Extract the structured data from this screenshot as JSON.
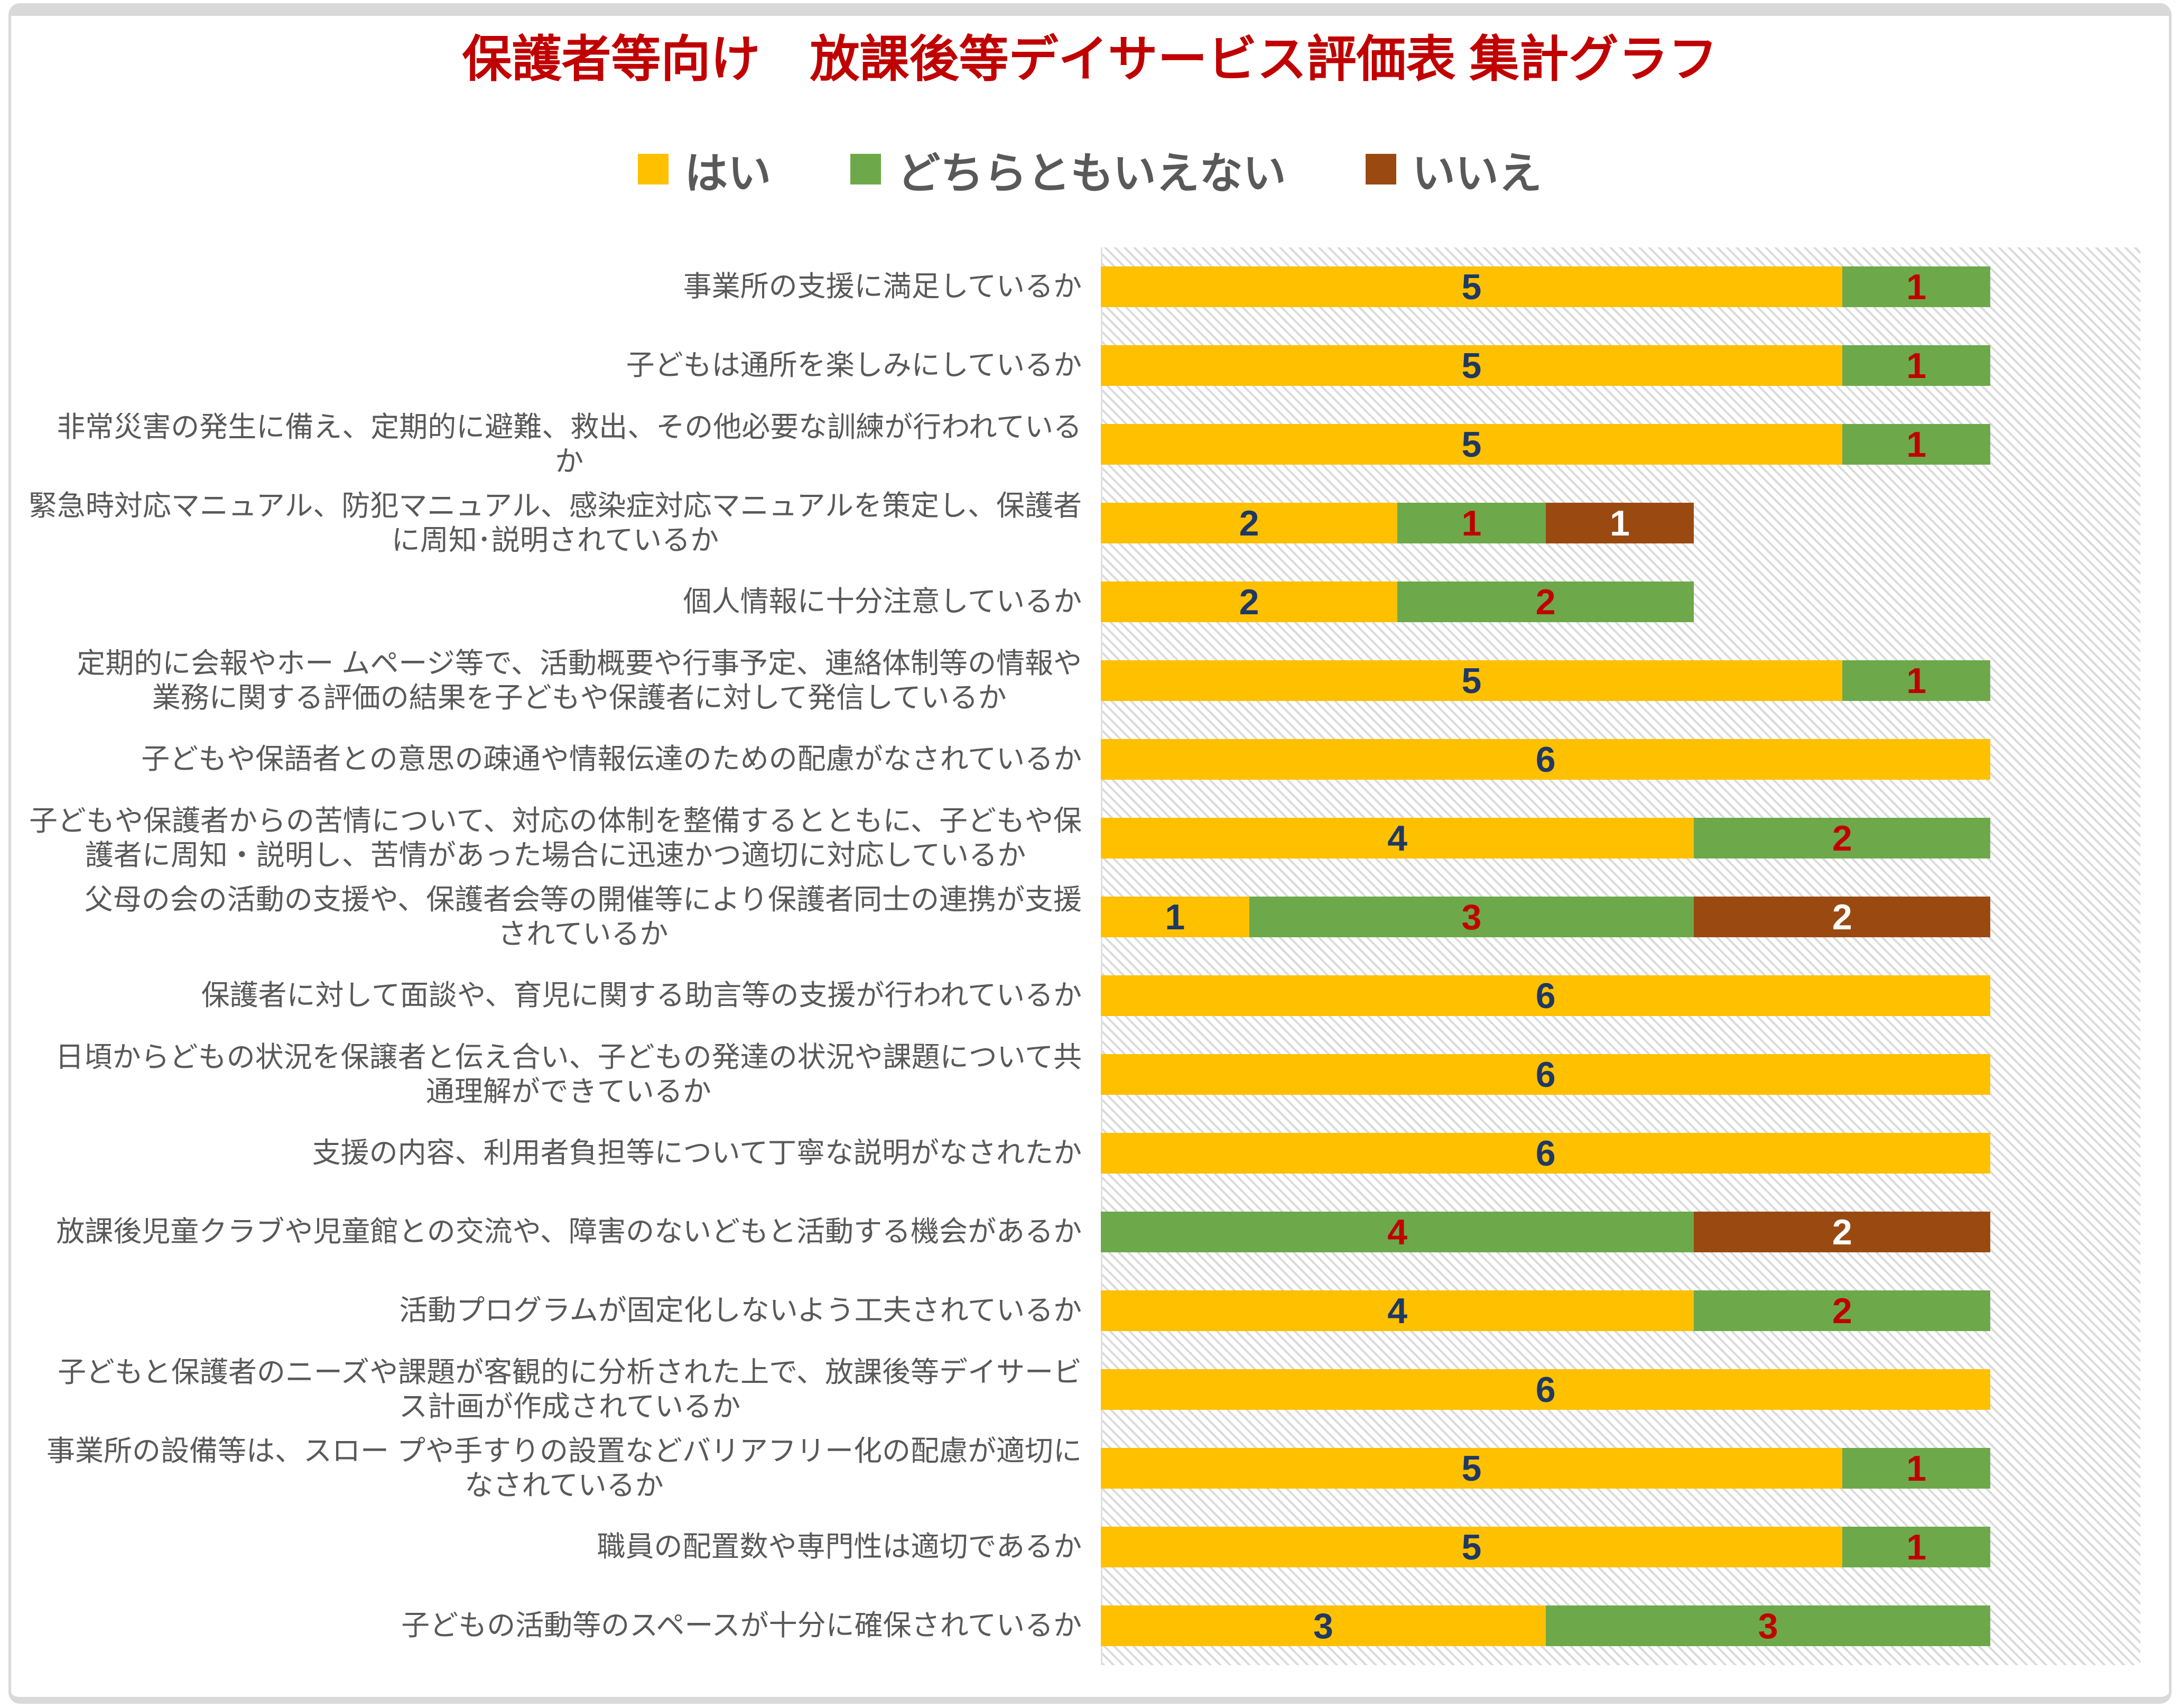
{
  "title": "保護者等向け　放課後等デイサービス評価表 集計グラフ",
  "legend": [
    {
      "key": "yes",
      "label": "はい",
      "color": "#FFC000"
    },
    {
      "key": "neutral",
      "label": "どちらともいえない",
      "color": "#6DA94A"
    },
    {
      "key": "no",
      "label": "いいえ",
      "color": "#9A4A11"
    }
  ],
  "colors": {
    "title": "#C00000",
    "value_on_yes": "#1F3864",
    "value_on_neutral": "#C00000",
    "value_on_no": "#FFFFFF",
    "category_text": "#595959",
    "hatch_line": "#DBDBDB",
    "frame_border": "#D9D9D9"
  },
  "chart_data": {
    "type": "bar",
    "orientation": "horizontal",
    "stacked": true,
    "x_min": 0,
    "x_max": 7,
    "grid": false,
    "legend_position": "top",
    "plot_background": "light diagonal hatch",
    "categories": [
      "事業所の支援に満足しているか",
      "子どもは通所を楽しみにしているか",
      "非常災害の発生に備え、定期的に避難、救出、その他必要な訓練が行われている\nか",
      "緊急時対応マニュアル、防犯マニュアル、感染症対応マニュアルを策定し、保護者\nに周知･説明されているか",
      "個人情報に十分注意しているか",
      "定期的に会報やホー ムページ等で、活動概要や行事予定、連絡体制等の情報や\n業務に関する評価の結果を子どもや保護者に対して発信しているか",
      "子どもや保語者との意思の疎通や情報伝達のための配慮がなされているか",
      "子どもや保護者からの苦情について、対応の体制を整備するとともに、子どもや保\n護者に周知・説明し、苦情があった場合に迅速かつ適切に対応しているか",
      "父母の会の活動の支援や、保護者会等の開催等により保護者同士の連携が支援\nされているか",
      "保護者に対して面談や、育児に関する助言等の支援が行われているか",
      "日頃からどもの状況を保譲者と伝え合い、子どもの発達の状況や課題について共\n通理解ができているか",
      "支援の内容、利用者負担等について丁寧な説明がなされたか",
      "放課後児童クラブや児童館との交流や、障害のないどもと活動する機会があるか",
      "活動プログラムが固定化しないよう工夫されているか",
      "子どもと保護者のニーズや課題が客観的に分析された上で、放課後等デイサービ\nス計画が作成されているか",
      "事業所の設備等は、スロー プや手すりの設置などバリアフリー化の配慮が適切に\nなされているか",
      "職員の配置数や専門性は適切であるか",
      "子どもの活動等のスペースが十分に確保されているか"
    ],
    "series": [
      {
        "key": "yes",
        "name": "はい",
        "color": "#FFC000",
        "label_color": "#1F3864",
        "values": [
          5,
          5,
          5,
          2,
          2,
          5,
          6,
          4,
          1,
          6,
          6,
          6,
          0,
          4,
          6,
          5,
          5,
          3
        ]
      },
      {
        "key": "neutral",
        "name": "どちらともいえない",
        "color": "#6DA94A",
        "label_color": "#C00000",
        "values": [
          1,
          1,
          1,
          1,
          2,
          1,
          0,
          2,
          3,
          0,
          0,
          0,
          4,
          2,
          0,
          1,
          1,
          3
        ]
      },
      {
        "key": "no",
        "name": "いいえ",
        "color": "#9A4A11",
        "label_color": "#FFFFFF",
        "values": [
          0,
          0,
          0,
          1,
          0,
          0,
          0,
          0,
          2,
          0,
          0,
          0,
          2,
          0,
          0,
          0,
          0,
          0
        ]
      }
    ]
  }
}
